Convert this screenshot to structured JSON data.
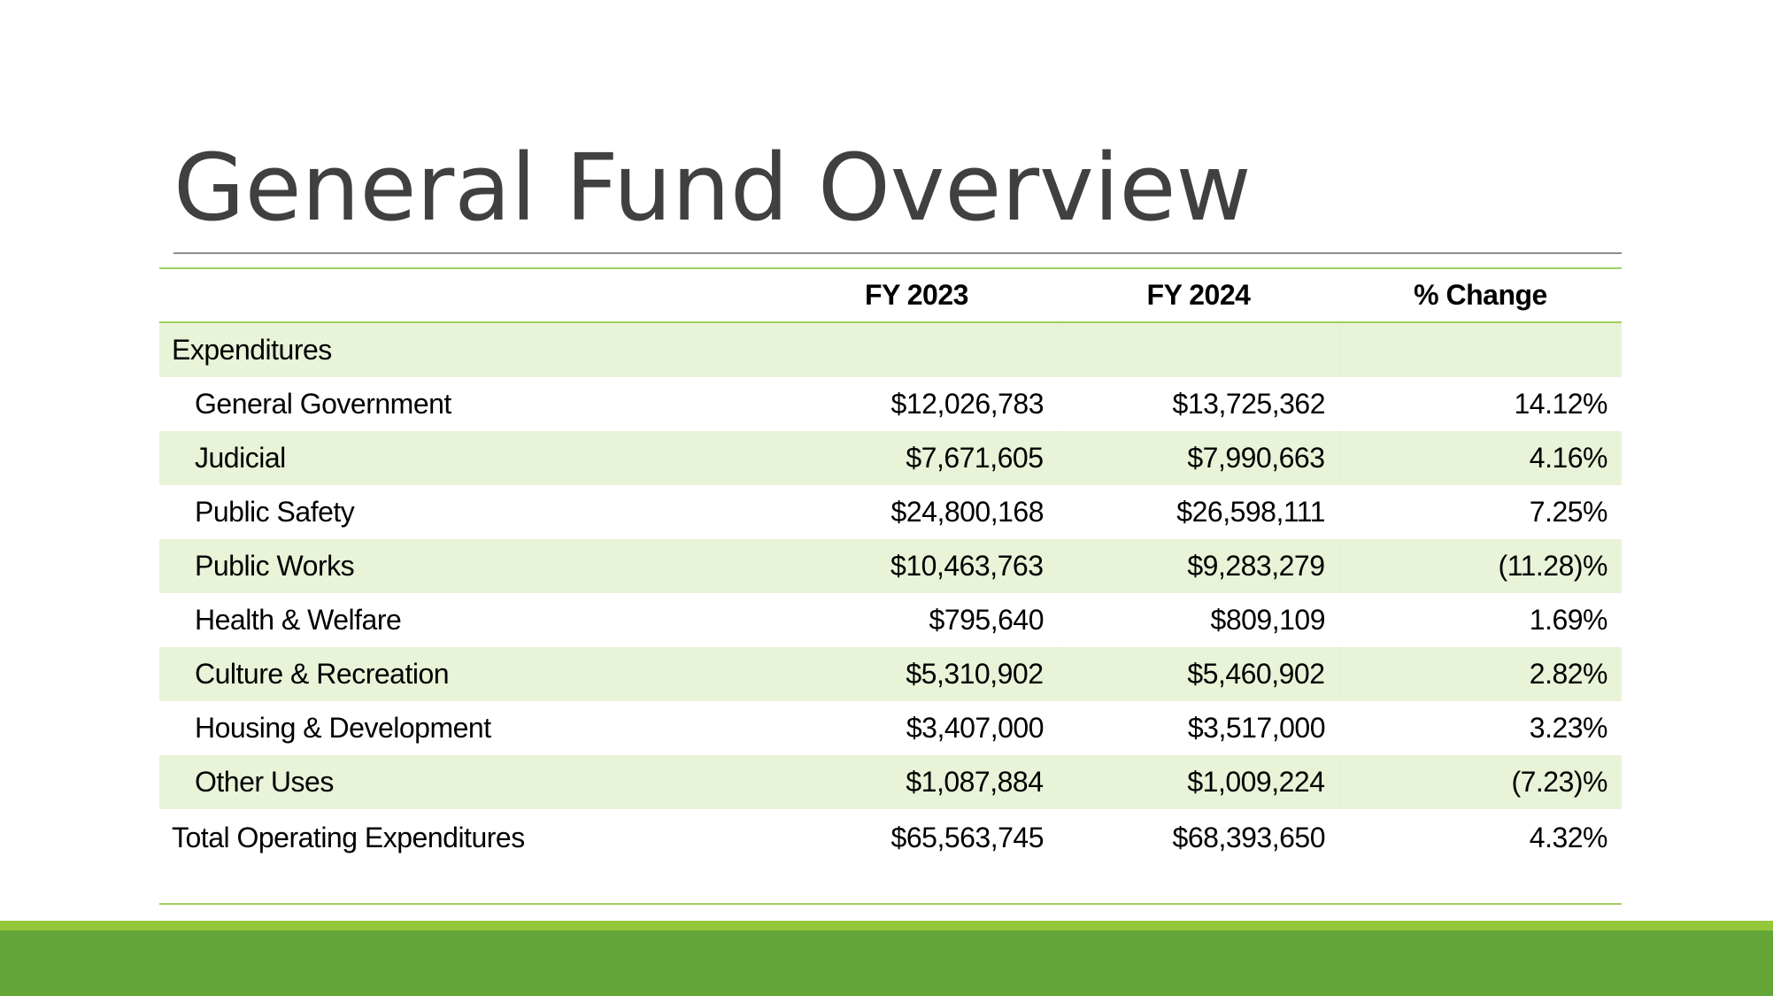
{
  "slide": {
    "title": "General Fund Overview",
    "colors": {
      "accent_light": "#93c83a",
      "accent_dark": "#63a536",
      "stripe": "#e8f3d8",
      "title": "#404040"
    }
  },
  "table": {
    "headers": [
      "",
      "FY 2023",
      "FY 2024",
      "% Change"
    ],
    "section_label": "Expenditures",
    "rows": [
      {
        "label": "General Government",
        "fy2023": "$12,026,783",
        "fy2024": "$13,725,362",
        "change": "14.12%"
      },
      {
        "label": "Judicial",
        "fy2023": "$7,671,605",
        "fy2024": "$7,990,663",
        "change": "4.16%"
      },
      {
        "label": "Public Safety",
        "fy2023": "$24,800,168",
        "fy2024": "$26,598,111",
        "change": "7.25%"
      },
      {
        "label": "Public Works",
        "fy2023": "$10,463,763",
        "fy2024": "$9,283,279",
        "change": "(11.28)%"
      },
      {
        "label": "Health & Welfare",
        "fy2023": "$795,640",
        "fy2024": "$809,109",
        "change": "1.69%"
      },
      {
        "label": "Culture & Recreation",
        "fy2023": "$5,310,902",
        "fy2024": "$5,460,902",
        "change": "2.82%"
      },
      {
        "label": "Housing & Development",
        "fy2023": "$3,407,000",
        "fy2024": "$3,517,000",
        "change": "3.23%"
      },
      {
        "label": "Other Uses",
        "fy2023": "$1,087,884",
        "fy2024": "$1,009,224",
        "change": "(7.23)%"
      }
    ],
    "total": {
      "label": "Total Operating Expenditures",
      "fy2023": "$65,563,745",
      "fy2024": "$68,393,650",
      "change": "4.32%"
    }
  }
}
